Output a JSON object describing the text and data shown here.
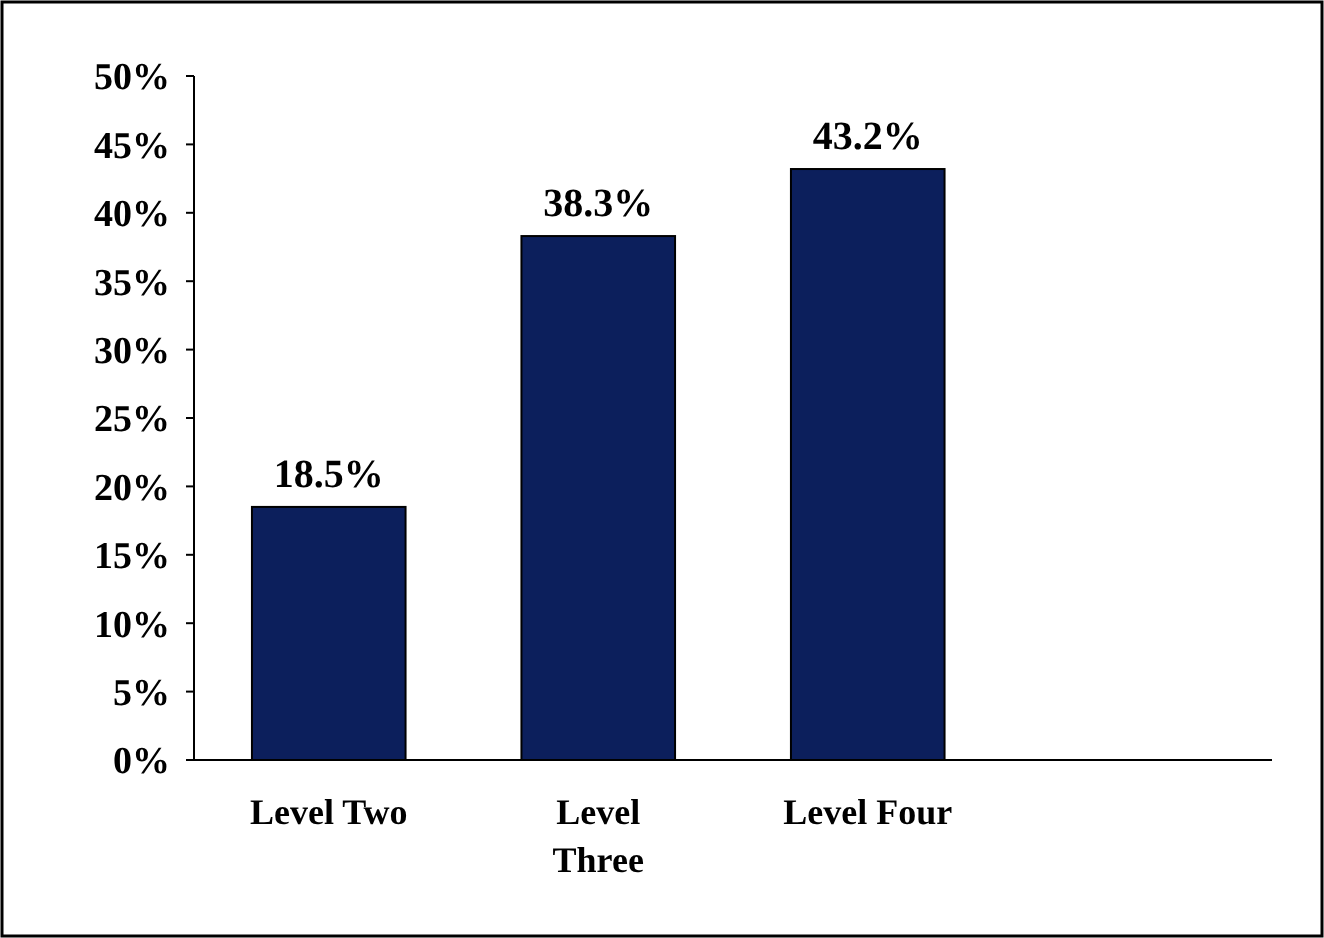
{
  "chart_data": {
    "type": "bar",
    "categories": [
      "Level Two",
      "Level Three",
      "Level Four",
      null
    ],
    "values": [
      18.5,
      38.3,
      43.2,
      null
    ],
    "value_labels": [
      "18.5%",
      "38.3%",
      "43.2%",
      null
    ],
    "color": "#0c1f5c",
    "ylim": [
      0,
      50
    ],
    "yticks": [
      {
        "value": 0,
        "label": "0%"
      },
      {
        "value": 5,
        "label": "5%"
      },
      {
        "value": 10,
        "label": "10%"
      },
      {
        "value": 15,
        "label": "15%"
      },
      {
        "value": 20,
        "label": "20%"
      },
      {
        "value": 25,
        "label": "25%"
      },
      {
        "value": 30,
        "label": "30%"
      },
      {
        "value": 35,
        "label": "35%"
      },
      {
        "value": 40,
        "label": "40%"
      },
      {
        "value": 45,
        "label": "45%"
      },
      {
        "value": 50,
        "label": "50%"
      }
    ],
    "grid": false
  }
}
